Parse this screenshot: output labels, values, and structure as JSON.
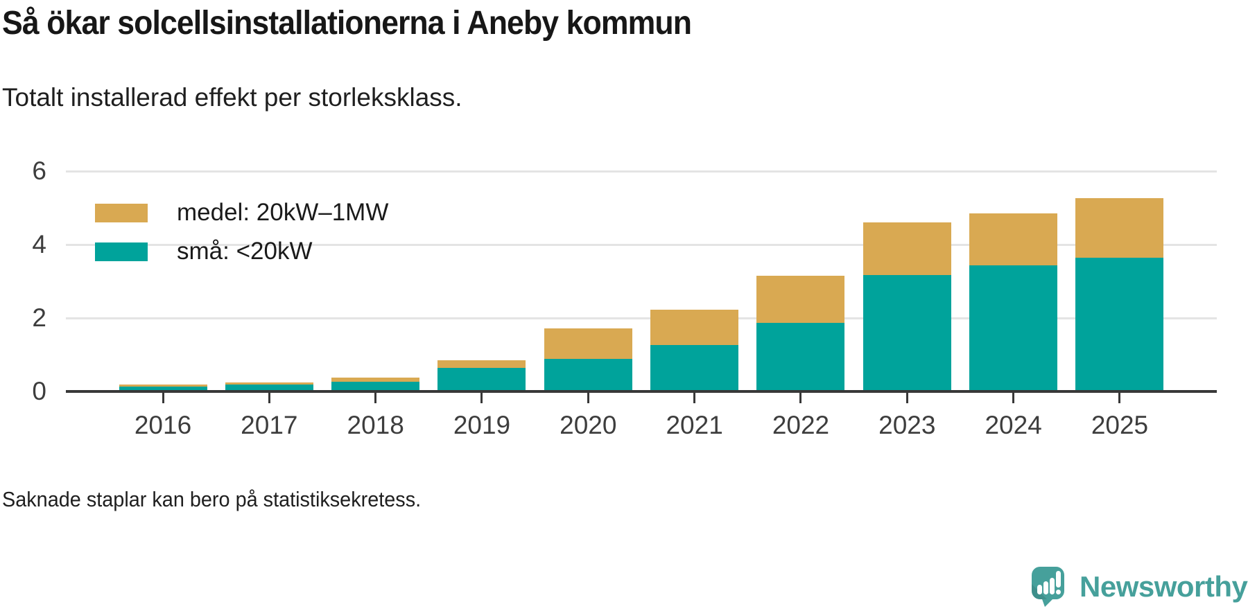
{
  "brand": {
    "name": "Newsworthy",
    "color": "#46A09B",
    "icon": "speech-bubble-bar-chart"
  },
  "chart_data": {
    "type": "bar",
    "stacked": true,
    "title": "Så ökar solcellsinstallationerna i Aneby kommun",
    "subtitle": "Totalt installerad effekt per storleksklass.",
    "note": "Saknade staplar kan bero på statistiksekretess.",
    "categories": [
      "2016",
      "2017",
      "2018",
      "2019",
      "2020",
      "2021",
      "2022",
      "2023",
      "2024",
      "2025"
    ],
    "series": [
      {
        "name": "medel: 20kW–1MW",
        "color": "#D9A952",
        "values": [
          0.06,
          0.06,
          0.11,
          0.19,
          0.83,
          0.97,
          1.28,
          1.44,
          1.41,
          1.62
        ]
      },
      {
        "name": "små: <20kW",
        "color": "#00A39B",
        "values": [
          0.13,
          0.18,
          0.27,
          0.65,
          0.88,
          1.26,
          1.87,
          3.17,
          3.43,
          3.65
        ]
      }
    ],
    "xlabel": "",
    "ylabel": "",
    "ylim": [
      0,
      6
    ],
    "yticks": [
      0,
      2,
      4,
      6
    ],
    "grid": "horizontal",
    "legend_position": "top-left"
  }
}
